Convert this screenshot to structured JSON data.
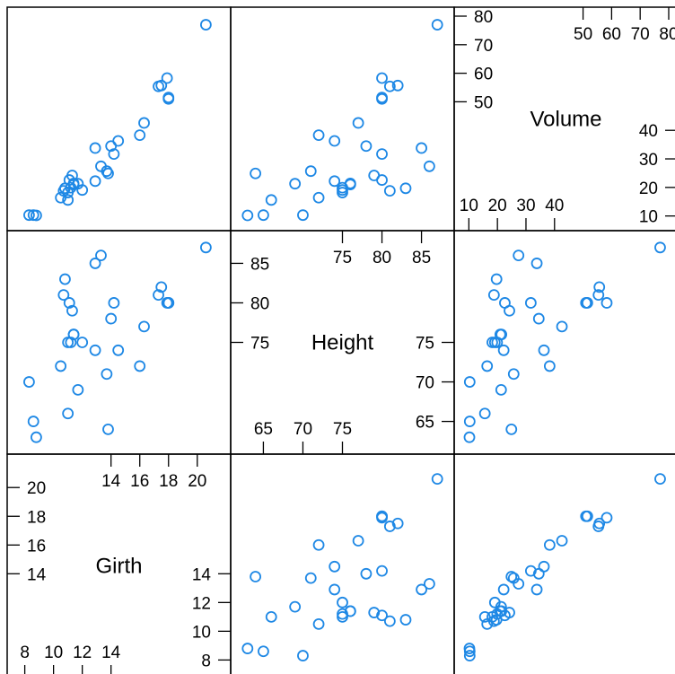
{
  "chart_data": {
    "type": "scatter",
    "subtype": "scatterplot-matrix",
    "point_color": "#1e88e5",
    "variables": [
      {
        "name": "Girth",
        "range": [
          7.4,
          21.7
        ],
        "ticks_low": [
          8,
          10,
          12,
          14
        ],
        "ticks_high": [
          14,
          16,
          18,
          20
        ]
      },
      {
        "name": "Height",
        "range": [
          62,
          88
        ],
        "ticks_low": [
          65,
          70,
          75
        ],
        "ticks_high": [
          75,
          80,
          85
        ]
      },
      {
        "name": "Volume",
        "range": [
          8,
          80
        ],
        "ticks_low": [
          10,
          20,
          30,
          40
        ],
        "ticks_high": [
          50,
          60,
          70,
          80
        ]
      }
    ],
    "observations": {
      "Girth": [
        8.3,
        8.6,
        8.8,
        10.5,
        10.7,
        10.8,
        11.0,
        11.0,
        11.1,
        11.2,
        11.3,
        11.4,
        11.4,
        11.7,
        12.0,
        12.9,
        12.9,
        13.3,
        13.7,
        13.8,
        14.0,
        14.2,
        14.5,
        16.0,
        16.3,
        17.3,
        17.5,
        17.9,
        18.0,
        18.0,
        20.6
      ],
      "Height": [
        70,
        65,
        63,
        72,
        81,
        83,
        66,
        75,
        80,
        75,
        79,
        76,
        76,
        69,
        75,
        74,
        85,
        86,
        71,
        64,
        78,
        80,
        74,
        72,
        77,
        81,
        82,
        80,
        80,
        80,
        87
      ],
      "Volume": [
        10.3,
        10.3,
        10.2,
        16.4,
        18.8,
        19.7,
        15.6,
        18.2,
        22.6,
        19.9,
        24.2,
        21.0,
        21.4,
        21.3,
        19.1,
        22.2,
        33.8,
        27.4,
        25.7,
        24.9,
        34.5,
        31.7,
        36.3,
        38.3,
        42.6,
        55.4,
        55.7,
        58.3,
        51.5,
        51.0,
        77.0
      ]
    }
  }
}
